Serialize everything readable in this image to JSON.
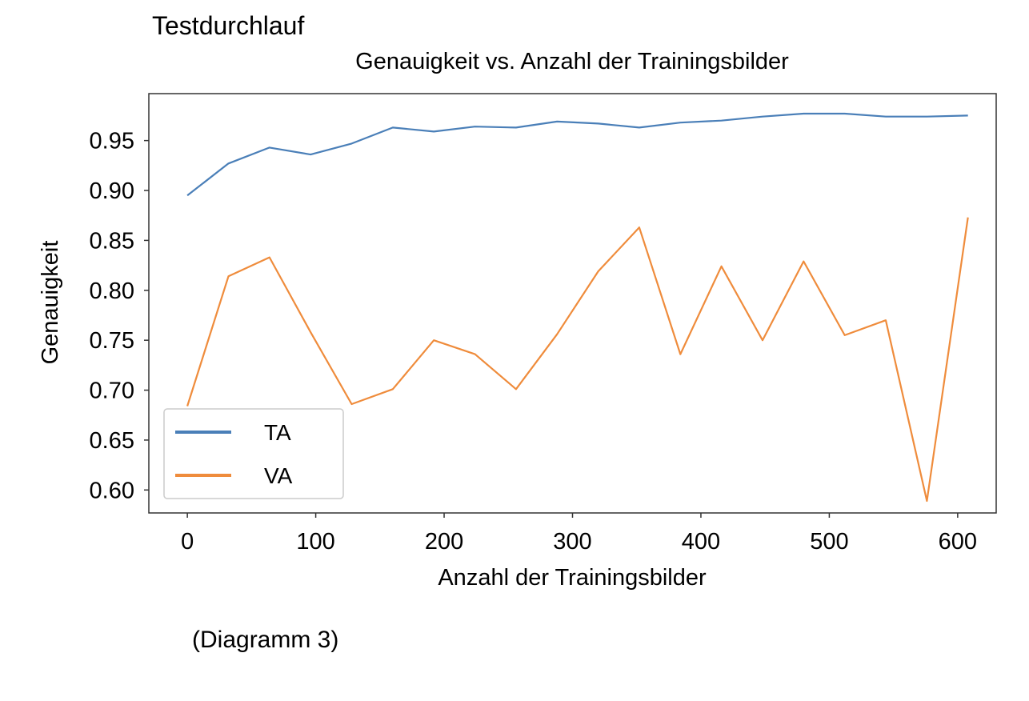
{
  "page": {
    "heading": "Testdurchlauf",
    "caption": "(Diagramm 3)"
  },
  "chart_data": {
    "type": "line",
    "title": "Genauigkeit vs. Anzahl der Trainingsbilder",
    "xlabel": "Anzahl der Trainingsbilder",
    "ylabel": "Genauigkeit",
    "xlim": [
      -30,
      630
    ],
    "ylim": [
      0.577,
      0.997
    ],
    "xticks": [
      0,
      100,
      200,
      300,
      400,
      500,
      600
    ],
    "xtick_labels": [
      "0",
      "100",
      "200",
      "300",
      "400",
      "500",
      "600"
    ],
    "yticks": [
      0.6,
      0.65,
      0.7,
      0.75,
      0.8,
      0.85,
      0.9,
      0.95
    ],
    "ytick_labels": [
      "0.60",
      "0.65",
      "0.70",
      "0.75",
      "0.80",
      "0.85",
      "0.90",
      "0.95"
    ],
    "grid": false,
    "legend_position": "lower-left",
    "x": [
      0,
      32,
      64,
      96,
      128,
      160,
      192,
      224,
      256,
      288,
      320,
      352,
      384,
      416,
      448,
      480,
      512,
      544,
      576,
      608
    ],
    "series": [
      {
        "name": "TA",
        "color": "#4a7fb8",
        "values": [
          0.895,
          0.927,
          0.943,
          0.936,
          0.947,
          0.963,
          0.959,
          0.964,
          0.963,
          0.969,
          0.967,
          0.963,
          0.968,
          0.97,
          0.974,
          0.977,
          0.977,
          0.974,
          0.974,
          0.975
        ]
      },
      {
        "name": "VA",
        "color": "#ef8c3c",
        "values": [
          0.684,
          0.814,
          0.833,
          0.758,
          0.686,
          0.701,
          0.75,
          0.736,
          0.701,
          0.756,
          0.819,
          0.863,
          0.736,
          0.824,
          0.75,
          0.829,
          0.755,
          0.77,
          0.589,
          0.873
        ]
      }
    ]
  }
}
